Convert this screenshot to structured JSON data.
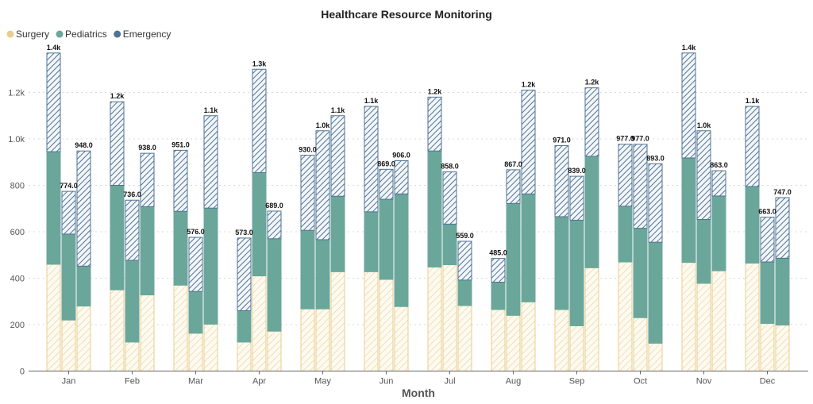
{
  "chart_data": {
    "type": "bar",
    "stacked": true,
    "title": "Healthcare Resource Monitoring",
    "xlabel": "Month",
    "ylabel": "",
    "ylim": [
      0,
      1400
    ],
    "yticks": [
      0,
      200,
      400,
      600,
      800,
      1000,
      1200
    ],
    "ytick_labels": [
      "0",
      "200",
      "400",
      "600",
      "800",
      "1.0k",
      "1.2k"
    ],
    "grid": "horizontal dotted",
    "legend_position": "top-left",
    "categories": [
      "Jan",
      "Feb",
      "Mar",
      "Apr",
      "May",
      "Jun",
      "Jul",
      "Aug",
      "Sep",
      "Oct",
      "Nov",
      "Dec"
    ],
    "bars_per_category": 3,
    "series": [
      {
        "name": "Surgery",
        "color": "#E8CF8E",
        "values": [
          [
            460,
            220,
            280
          ],
          [
            350,
            125,
            328
          ],
          [
            370,
            163,
            202
          ],
          [
            125,
            410,
            172
          ],
          [
            268,
            268,
            428
          ],
          [
            428,
            395,
            278
          ],
          [
            448,
            458,
            282
          ],
          [
            265,
            240,
            298
          ],
          [
            265,
            195,
            445
          ],
          [
            470,
            230,
            120
          ],
          [
            468,
            378,
            432
          ],
          [
            465,
            205,
            198
          ]
        ]
      },
      {
        "name": "Pediatrics",
        "color": "#6BA69B",
        "values": [
          [
            485,
            370,
            172
          ],
          [
            450,
            352,
            380
          ],
          [
            318,
            180,
            500
          ],
          [
            135,
            445,
            398
          ],
          [
            338,
            298,
            325
          ],
          [
            258,
            345,
            485
          ],
          [
            500,
            175,
            110
          ],
          [
            118,
            482,
            465
          ],
          [
            400,
            455,
            480
          ],
          [
            240,
            385,
            435
          ],
          [
            450,
            275,
            322
          ],
          [
            330,
            265,
            288
          ]
        ]
      },
      {
        "name": "Emergency",
        "color": "#4F7394",
        "values": [
          [
            425,
            184,
            496
          ],
          [
            360,
            259,
            230
          ],
          [
            263,
            233,
            398
          ],
          [
            313,
            445,
            119
          ],
          [
            324,
            469,
            347
          ],
          [
            454,
            129,
            143
          ],
          [
            232,
            225,
            167
          ],
          [
            102,
            145,
            447
          ],
          [
            306,
            189,
            295
          ],
          [
            267,
            362,
            338
          ],
          [
            452,
            382,
            109
          ],
          [
            345,
            193,
            261
          ]
        ]
      }
    ],
    "total_labels": [
      [
        "1.4k",
        "774.0",
        "948.0"
      ],
      [
        "1.2k",
        "736.0",
        "938.0"
      ],
      [
        "951.0",
        "576.0",
        "1.1k"
      ],
      [
        "573.0",
        "1.3k",
        "689.0"
      ],
      [
        "930.0",
        "1.0k",
        "1.1k"
      ],
      [
        "1.1k",
        "869.0",
        "906.0"
      ],
      [
        "1.2k",
        "858.0",
        "559.0"
      ],
      [
        "485.0",
        "867.0",
        "1.2k"
      ],
      [
        "971.0",
        "839.0",
        "1.2k"
      ],
      [
        "977.0",
        "977.0",
        "893.0"
      ],
      [
        "1.4k",
        "1.0k",
        "863.0"
      ],
      [
        "1.1k",
        "663.0",
        "747.0"
      ]
    ]
  }
}
